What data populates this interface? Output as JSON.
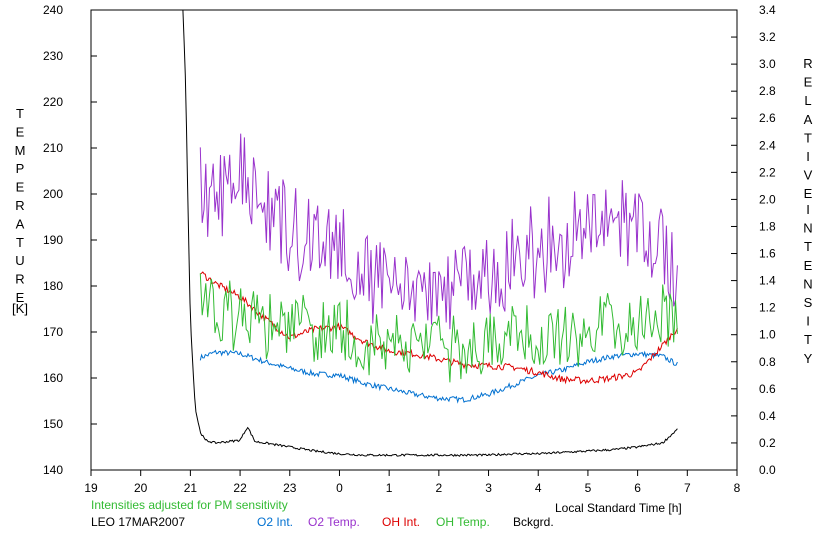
{
  "chart_data": {
    "type": "line",
    "left_axis": {
      "label_letters": [
        "T",
        "E",
        "M",
        "P",
        "E",
        "R",
        "A",
        "T",
        "U",
        "R",
        "E"
      ],
      "unit": "[K]",
      "range": [
        140,
        240
      ],
      "ticks": [
        "140",
        "150",
        "160",
        "170",
        "180",
        "190",
        "200",
        "210",
        "220",
        "230",
        "240"
      ]
    },
    "right_axis": {
      "label_word1": [
        "R",
        "E",
        "L",
        "A",
        "T",
        "I",
        "V",
        "E"
      ],
      "label_word2": [
        "I",
        "N",
        "T",
        "E",
        "N",
        "S",
        "I",
        "T",
        "Y"
      ],
      "range": [
        0.0,
        3.4
      ],
      "ticks": [
        "0.0",
        "0.2",
        "0.4",
        "0.6",
        "0.8",
        "1.0",
        "1.2",
        "1.4",
        "1.6",
        "1.8",
        "2.0",
        "2.2",
        "2.4",
        "2.6",
        "2.8",
        "3.0",
        "3.2",
        "3.4"
      ]
    },
    "x_axis": {
      "label": "Local Standard Time [h]",
      "ticks": [
        "19",
        "20",
        "21",
        "22",
        "23",
        "0",
        "1",
        "2",
        "3",
        "4",
        "5",
        "6",
        "7",
        "8"
      ],
      "range_hours_since_19": [
        0,
        13
      ]
    },
    "note": "Intensities adjusted for PM sensitivity",
    "station": "LEO 17MAR2007",
    "grid": false,
    "series": [
      {
        "name": "O2 Int.",
        "color": "#0070d0",
        "axis": "right",
        "x": [
          21.2,
          21.5,
          22.0,
          22.5,
          23.0,
          23.5,
          0.0,
          0.5,
          1.0,
          1.5,
          2.0,
          2.5,
          3.0,
          3.5,
          4.0,
          4.5,
          5.0,
          5.5,
          6.0,
          6.5,
          6.8
        ],
        "y": [
          0.83,
          0.87,
          0.86,
          0.8,
          0.75,
          0.71,
          0.7,
          0.64,
          0.6,
          0.56,
          0.53,
          0.52,
          0.56,
          0.63,
          0.7,
          0.74,
          0.8,
          0.84,
          0.86,
          0.84,
          0.78
        ]
      },
      {
        "name": "O2 Temp.",
        "color": "#9933cc",
        "axis": "left",
        "x": [
          21.2,
          21.5,
          22.0,
          22.5,
          23.0,
          23.5,
          0.0,
          0.5,
          1.0,
          1.5,
          2.0,
          2.5,
          3.0,
          3.5,
          4.0,
          4.5,
          5.0,
          5.5,
          6.0,
          6.5,
          6.8
        ],
        "y": [
          202,
          200,
          203,
          198,
          193,
          190,
          187,
          183,
          181,
          180,
          180,
          181,
          182,
          186,
          188,
          190,
          192,
          194,
          192,
          188,
          185
        ]
      },
      {
        "name": "OH Int.",
        "color": "#dd0000",
        "axis": "right",
        "x": [
          21.2,
          21.5,
          22.0,
          22.5,
          23.0,
          23.5,
          0.0,
          0.5,
          1.0,
          1.5,
          2.0,
          2.5,
          3.0,
          3.5,
          4.0,
          4.5,
          5.0,
          5.5,
          6.0,
          6.5,
          6.8
        ],
        "y": [
          1.46,
          1.38,
          1.28,
          1.12,
          0.98,
          1.04,
          1.06,
          0.95,
          0.88,
          0.86,
          0.82,
          0.78,
          0.77,
          0.76,
          0.72,
          0.67,
          0.66,
          0.68,
          0.72,
          0.92,
          1.05
        ]
      },
      {
        "name": "OH Temp.",
        "color": "#33bb33",
        "axis": "left",
        "x": [
          21.2,
          21.5,
          22.0,
          22.5,
          23.0,
          23.5,
          0.0,
          0.5,
          1.0,
          1.5,
          2.0,
          2.5,
          3.0,
          3.5,
          4.0,
          4.5,
          5.0,
          5.5,
          6.0,
          6.5,
          6.8
        ],
        "y": [
          175,
          174,
          173,
          172,
          171,
          171,
          170,
          168,
          168,
          167,
          167,
          167,
          167,
          168,
          168,
          169,
          171,
          171,
          172,
          173,
          172
        ]
      },
      {
        "name": "Bckgrd.",
        "color": "#000000",
        "axis": "right",
        "x": [
          20.85,
          20.9,
          20.95,
          21.0,
          21.1,
          21.2,
          21.3,
          21.5,
          22.0,
          22.15,
          22.3,
          22.5,
          23.0,
          23.5,
          0.0,
          0.5,
          1.0,
          1.5,
          2.0,
          2.5,
          3.0,
          3.5,
          4.0,
          4.5,
          5.0,
          5.5,
          6.0,
          6.5,
          6.8
        ],
        "y": [
          3.4,
          2.9,
          2.0,
          1.1,
          0.45,
          0.28,
          0.22,
          0.2,
          0.22,
          0.32,
          0.21,
          0.2,
          0.17,
          0.14,
          0.12,
          0.11,
          0.11,
          0.11,
          0.11,
          0.11,
          0.11,
          0.12,
          0.12,
          0.13,
          0.14,
          0.15,
          0.17,
          0.2,
          0.3
        ]
      }
    ]
  }
}
